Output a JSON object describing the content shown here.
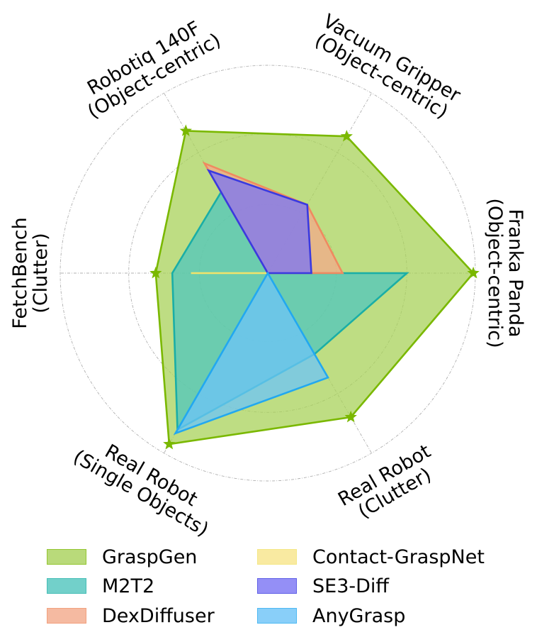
{
  "chart_data": {
    "type": "radar",
    "axes": [
      {
        "line1": "Franka Panda",
        "line2": "(Object-centric)"
      },
      {
        "line1": "Vacuum Gripper",
        "line2": "(Object-centric)"
      },
      {
        "line1": "Robotiq 140F",
        "line2": "(Object-centric)"
      },
      {
        "line1": "FetchBench",
        "line2": "(Clutter)"
      },
      {
        "line1": "Real Robot",
        "line2": "(Single Objects)"
      },
      {
        "line1": "Real Robot",
        "line2": "(Clutter)"
      }
    ],
    "rlim": [
      0,
      1
    ],
    "rings": [
      0.33,
      0.67,
      1.0
    ],
    "grid": true,
    "legend_position": "bottom",
    "series": [
      {
        "name": "GraspGen",
        "color": "#7ab800",
        "fill": "#a8d25a",
        "values": [
          0.99,
          0.76,
          0.79,
          0.54,
          0.95,
          0.8
        ],
        "markers": true
      },
      {
        "name": "M2T2",
        "color": "#1aaea6",
        "fill": "#4fc5bd",
        "values": [
          0.67,
          0.0,
          0.45,
          0.46,
          0.87,
          0.45
        ],
        "markers": false
      },
      {
        "name": "DexDiffuser",
        "color": "#f08a60",
        "fill": "#f3a98a",
        "values": [
          0.36,
          0.38,
          0.61,
          0.0,
          0.0,
          0.0
        ],
        "markers": false
      },
      {
        "name": "Contact-GraspNet",
        "color": "#f2e36a",
        "fill": "#f8e68a",
        "values": [
          0.0,
          0.0,
          0.0,
          0.37,
          0.0,
          0.0
        ],
        "markers": false
      },
      {
        "name": "SE3-Diff",
        "color": "#3a3ae0",
        "fill": "#7a74f5",
        "values": [
          0.21,
          0.38,
          0.57,
          0.0,
          0.0,
          0.0
        ],
        "markers": false
      },
      {
        "name": "AnyGrasp",
        "color": "#22a8f0",
        "fill": "#6cc4f8",
        "values": [
          0.0,
          0.0,
          0.0,
          0.0,
          0.89,
          0.58
        ],
        "markers": false
      }
    ]
  }
}
